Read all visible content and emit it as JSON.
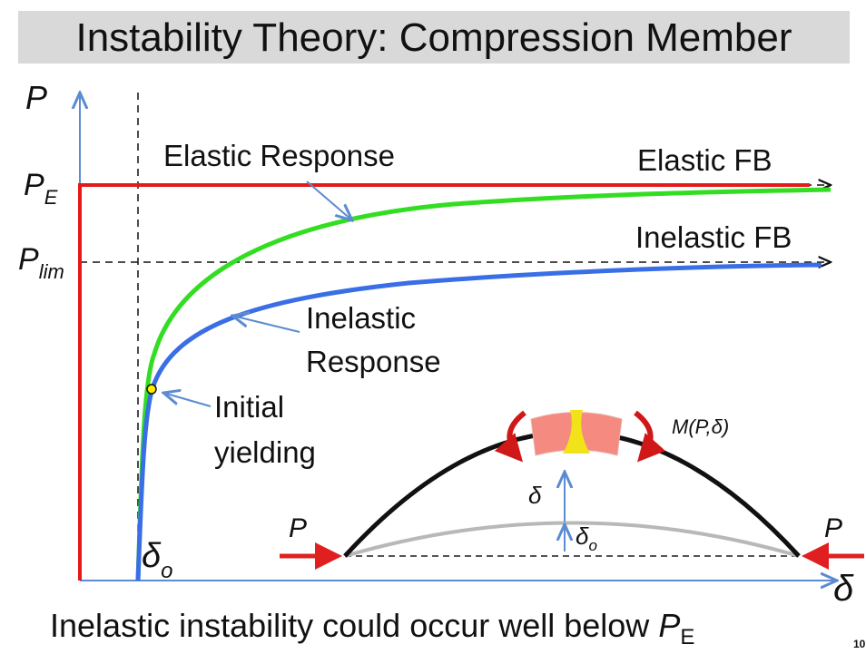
{
  "header": {
    "title": "Instability Theory:  Compression Member"
  },
  "axes": {
    "y_label": "P",
    "x_label": "δ"
  },
  "levels": {
    "pe": {
      "base": "P",
      "sub": "E"
    },
    "plim": {
      "base": "P",
      "sub": "lim"
    }
  },
  "curves": {
    "elastic_response": "Elastic Response",
    "elastic_fb": "Elastic FB",
    "inelastic_fb": "Inelastic FB",
    "inelastic_response": [
      "Inelastic",
      "Response"
    ],
    "initial_yielding": [
      "Initial",
      "yielding"
    ]
  },
  "offset": {
    "base": "δ",
    "sub": "o"
  },
  "inset": {
    "load_left": "P",
    "load_right": "P",
    "moment": "M(P,δ)",
    "deflection": "δ",
    "initial": {
      "base": "δ",
      "sub": "o"
    }
  },
  "caption": {
    "text": "Inelastic instability could occur well below ",
    "base": "P",
    "sub": "E"
  },
  "page_number": "10"
}
